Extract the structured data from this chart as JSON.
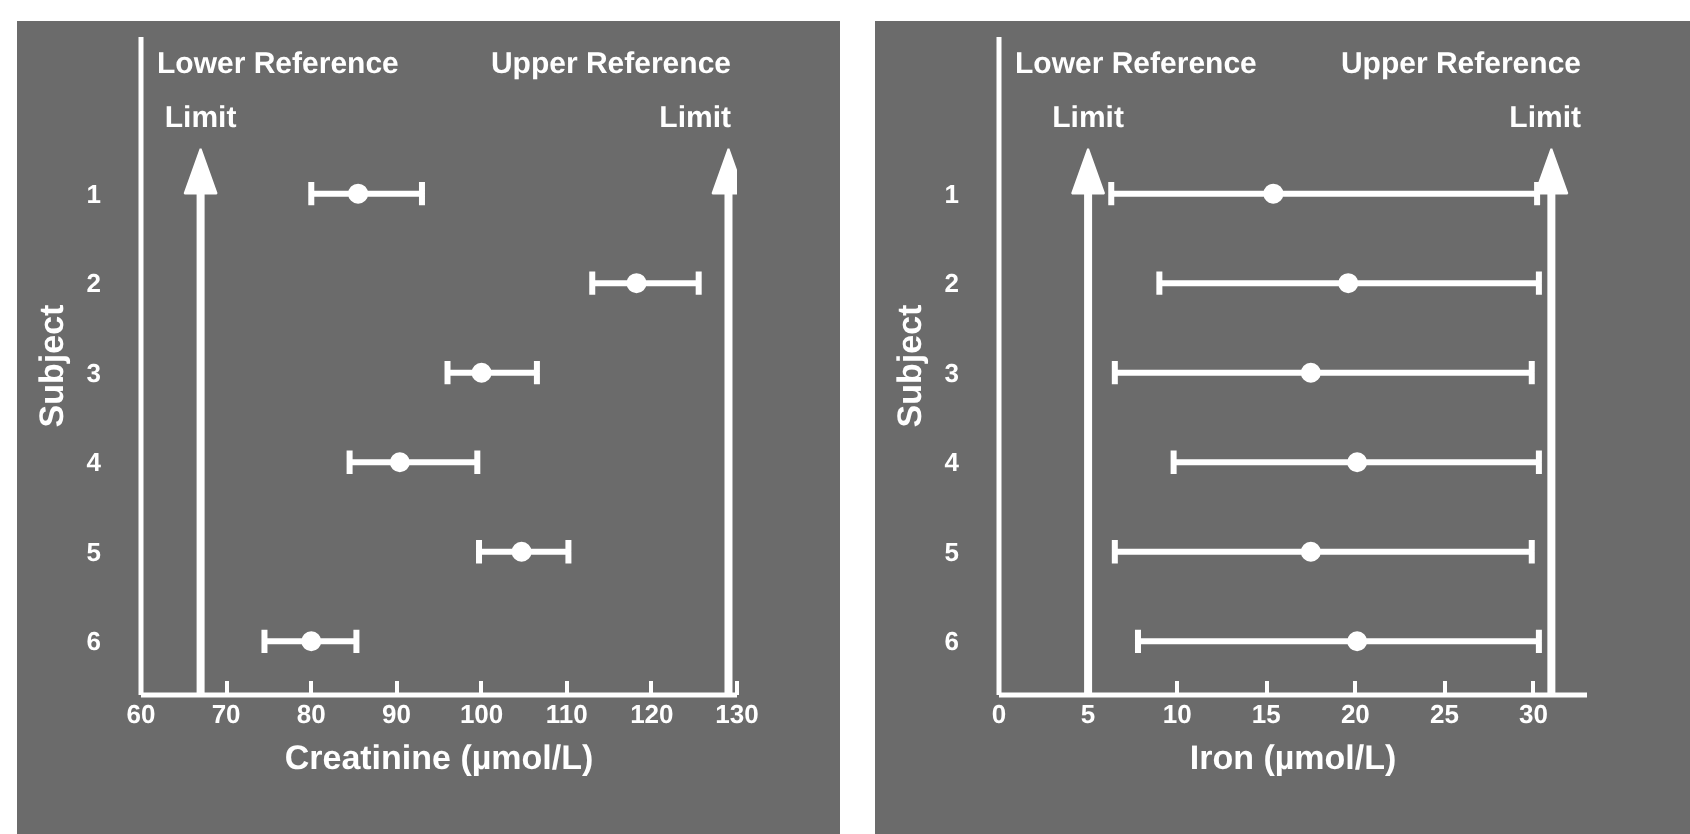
{
  "chart_data": [
    {
      "type": "scatter",
      "orientation": "horizontal",
      "categories": [
        "1",
        "2",
        "3",
        "4",
        "5",
        "6"
      ],
      "xlabel": "Creatinine (µmol/L)",
      "ylabel": "Subject",
      "xlim": [
        60,
        130
      ],
      "xticks": [
        60,
        70,
        80,
        90,
        100,
        110,
        120,
        130
      ],
      "grid": false,
      "marker": "circle",
      "series": [
        {
          "color": "#ffffff",
          "values": [
            85.5,
            118.2,
            100,
            90.4,
            104.7,
            80
          ],
          "errors": [
            [
              80,
              93
            ],
            [
              113,
              125.5
            ],
            [
              96,
              106.5
            ],
            [
              84.5,
              99.5
            ],
            [
              99.7,
              110.2
            ],
            [
              74.5,
              85.3
            ]
          ]
        }
      ],
      "ref_lines": [
        {
          "axis": "x",
          "value": 67,
          "label": "Lower Reference Limit",
          "color": "#ffffff"
        },
        {
          "axis": "x",
          "value": 129,
          "label": "Upper Reference Limit",
          "color": "#ffffff"
        }
      ]
    },
    {
      "type": "scatter",
      "orientation": "horizontal",
      "categories": [
        "1",
        "2",
        "3",
        "4",
        "5",
        "6"
      ],
      "xlabel": "Iron (µmol/L)",
      "ylabel": "Subject",
      "xlim": [
        0,
        33
      ],
      "xticks": [
        0,
        5,
        10,
        15,
        20,
        25,
        30
      ],
      "grid": false,
      "marker": "circle",
      "series": [
        {
          "color": "#ffffff",
          "values": [
            15.4,
            19.6,
            17.5,
            20.1,
            17.5,
            20.1
          ],
          "errors": [
            [
              6.3,
              30.2
            ],
            [
              9,
              30.3
            ],
            [
              6.5,
              29.9
            ],
            [
              9.8,
              30.3
            ],
            [
              6.5,
              29.9
            ],
            [
              7.8,
              30.3
            ]
          ]
        }
      ],
      "ref_lines": [
        {
          "axis": "x",
          "value": 5,
          "label": "Lower Reference Limit",
          "color": "#ffffff"
        },
        {
          "axis": "x",
          "value": 31,
          "label": "Upper Reference Limit",
          "color": "#ffffff"
        }
      ]
    }
  ]
}
